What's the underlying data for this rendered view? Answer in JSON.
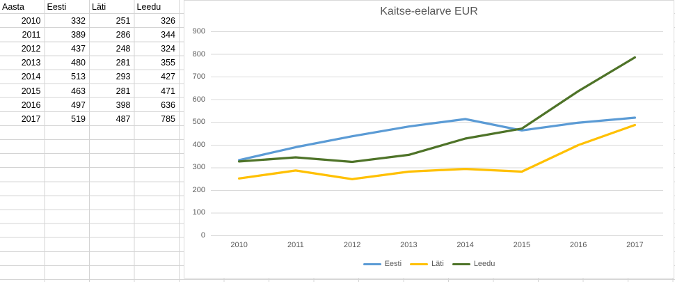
{
  "spreadsheet": {
    "header": [
      "Aasta",
      "Eesti",
      "Läti",
      "Leedu"
    ],
    "rows": [
      [
        "2010",
        "332",
        "251",
        "326"
      ],
      [
        "2011",
        "389",
        "286",
        "344"
      ],
      [
        "2012",
        "437",
        "248",
        "324"
      ],
      [
        "2013",
        "480",
        "281",
        "355"
      ],
      [
        "2014",
        "513",
        "293",
        "427"
      ],
      [
        "2015",
        "463",
        "281",
        "471"
      ],
      [
        "2016",
        "497",
        "398",
        "636"
      ],
      [
        "2017",
        "519",
        "487",
        "785"
      ]
    ]
  },
  "chart_data": {
    "type": "line",
    "title": "Kaitse-eelarve EUR",
    "categories": [
      "2010",
      "2011",
      "2012",
      "2013",
      "2014",
      "2015",
      "2016",
      "2017"
    ],
    "series": [
      {
        "name": "Eesti",
        "color": "#5B9BD5",
        "values": [
          332,
          389,
          437,
          480,
          513,
          463,
          497,
          519
        ]
      },
      {
        "name": "Läti",
        "color": "#FFC000",
        "values": [
          251,
          286,
          248,
          281,
          293,
          281,
          398,
          487
        ]
      },
      {
        "name": "Leedu",
        "color": "#4E7328",
        "values": [
          326,
          344,
          324,
          355,
          427,
          471,
          636,
          785
        ]
      }
    ],
    "ylim": [
      0,
      900
    ],
    "y_ticks": [
      0,
      100,
      200,
      300,
      400,
      500,
      600,
      700,
      800,
      900
    ],
    "grid": true,
    "legend_position": "bottom",
    "axis_text_color": "#595959",
    "gridline_color": "#d9d9d9"
  }
}
